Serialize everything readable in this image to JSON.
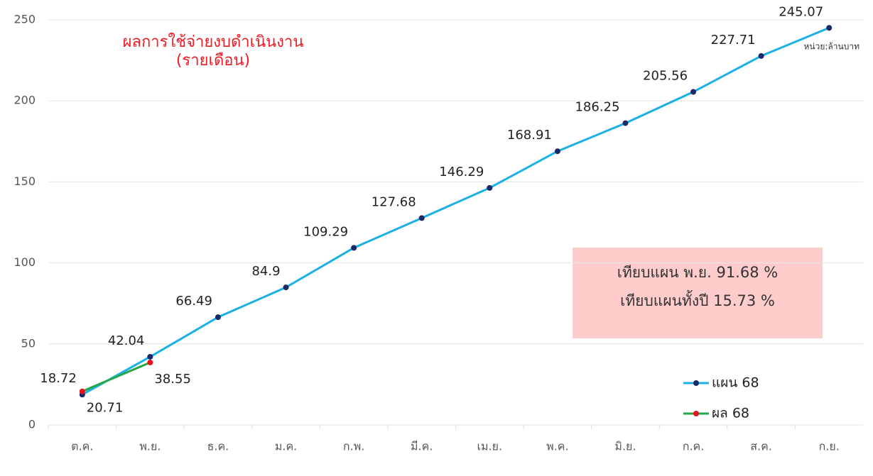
{
  "chart_data": {
    "type": "line",
    "title": "ผลการใช้จ่ายงบดำเนินงาน",
    "subtitle": "(รายเดือน)",
    "unit_label": "หน่วย:ล้านบาท",
    "annotations": [
      "เทียบแผน พ.ย. 91.68 %",
      "เทียบแผนทั้งปี 15.73 %"
    ],
    "categories": [
      "ต.ค.",
      "พ.ย.",
      "ธ.ค.",
      "ม.ค.",
      "ก.พ.",
      "มี.ค.",
      "เม.ย.",
      "พ.ค.",
      "มิ.ย.",
      "ก.ค.",
      "ส.ค.",
      "ก.ย."
    ],
    "series": [
      {
        "name": "แผน 68",
        "color": "#1cb0e6",
        "marker_color": "#1a2a66",
        "values": [
          18.72,
          42.04,
          66.49,
          84.9,
          109.29,
          127.68,
          146.29,
          168.91,
          186.25,
          205.56,
          227.71,
          245.07
        ]
      },
      {
        "name": "ผล 68",
        "color": "#22a84a",
        "marker_color": "#e8141c",
        "values": [
          20.71,
          38.55,
          null,
          null,
          null,
          null,
          null,
          null,
          null,
          null,
          null,
          null
        ]
      }
    ],
    "ylim": [
      0,
      250
    ],
    "yticks": [
      0,
      50,
      100,
      150,
      200,
      250
    ],
    "grid": true,
    "legend": "lower right"
  }
}
